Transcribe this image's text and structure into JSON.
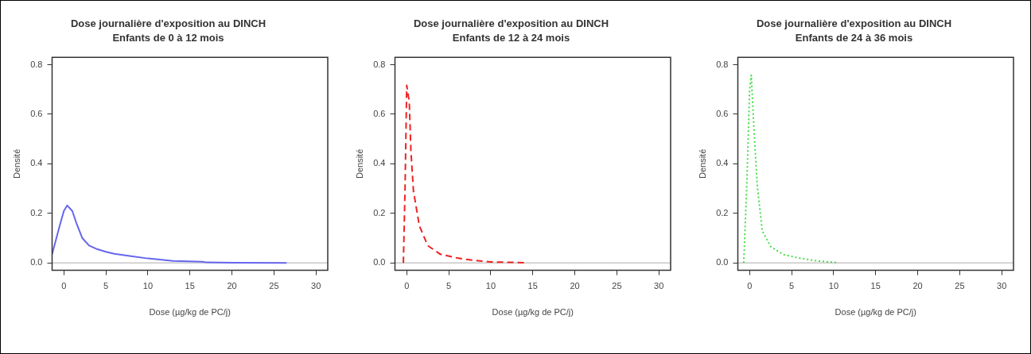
{
  "chart_data": [
    {
      "type": "line",
      "title": "Dose journalière d'exposition au DINCH",
      "subtitle": "Enfants de 0 à 12 mois",
      "xlabel": "Dose (µg/kg de PC/j)",
      "ylabel": "Densité",
      "line_style": "solid",
      "marker": "none",
      "series": [
        {
          "color": "#6666ee",
          "x": [
            -1.4,
            -0.5,
            0,
            0.4,
            1,
            1.5,
            2.2,
            3,
            4,
            5,
            6,
            8,
            10,
            13,
            16.5,
            17,
            20,
            26.5
          ],
          "values": [
            0.035,
            0.15,
            0.21,
            0.232,
            0.21,
            0.16,
            0.1,
            0.07,
            0.055,
            0.045,
            0.037,
            0.027,
            0.018,
            0.008,
            0.005,
            0.002,
            0.001,
            0
          ]
        }
      ],
      "ref_lines": [
        {
          "axis": "y",
          "value": 0,
          "color": "#c8c8c8"
        }
      ],
      "xlim": [
        -1.4,
        31.4
      ],
      "ylim": [
        -0.03,
        0.83
      ],
      "xticks": [
        0,
        5,
        10,
        15,
        20,
        25,
        30
      ],
      "yticks": [
        {
          "value": 0,
          "label": "0.0"
        },
        {
          "value": 0.2,
          "label": "0.2"
        },
        {
          "value": 0.4,
          "label": "0.4"
        },
        {
          "value": 0.6,
          "label": "0.6"
        },
        {
          "value": 0.8,
          "label": "0.8"
        }
      ]
    },
    {
      "type": "line",
      "title": "Dose journalière d'exposition au DINCH",
      "subtitle": "Enfants de 12 à 24 mois",
      "xlabel": "Dose (µg/kg de PC/j)",
      "ylabel": "Densité",
      "line_style": "dashed",
      "marker": "none",
      "series": [
        {
          "color": "#ee2222",
          "x": [
            -0.4,
            -0.2,
            0,
            0.3,
            0.5,
            0.8,
            1.5,
            2.5,
            4,
            6,
            8,
            10,
            14
          ],
          "values": [
            0,
            0.3,
            0.717,
            0.65,
            0.45,
            0.29,
            0.15,
            0.07,
            0.035,
            0.02,
            0.01,
            0.004,
            0.001
          ]
        }
      ],
      "ref_lines": [
        {
          "axis": "y",
          "value": 0,
          "color": "#c8c8c8"
        }
      ],
      "xlim": [
        -1.4,
        31.4
      ],
      "ylim": [
        -0.03,
        0.83
      ],
      "xticks": [
        0,
        5,
        10,
        15,
        20,
        25,
        30
      ],
      "yticks": [
        {
          "value": 0,
          "label": "0.0"
        },
        {
          "value": 0.2,
          "label": "0.2"
        },
        {
          "value": 0.4,
          "label": "0.4"
        },
        {
          "value": 0.6,
          "label": "0.6"
        },
        {
          "value": 0.8,
          "label": "0.8"
        }
      ]
    },
    {
      "type": "line",
      "title": "Dose journalière d'exposition au DINCH",
      "subtitle": "Enfants de 24 à 36 mois",
      "xlabel": "Dose (µg/kg de PC/j)",
      "ylabel": "Densité",
      "line_style": "dotted",
      "marker": "none",
      "series": [
        {
          "color": "#44dd44",
          "x": [
            -0.7,
            -0.3,
            0,
            0.2,
            0.5,
            0.9,
            1.5,
            2.5,
            4,
            6,
            8,
            10.5
          ],
          "values": [
            0,
            0.35,
            0.7,
            0.758,
            0.55,
            0.316,
            0.13,
            0.066,
            0.034,
            0.019,
            0.008,
            0.001
          ]
        }
      ],
      "ref_lines": [
        {
          "axis": "y",
          "value": 0,
          "color": "#c8c8c8"
        }
      ],
      "xlim": [
        -1.4,
        31.4
      ],
      "ylim": [
        -0.03,
        0.83
      ],
      "xticks": [
        0,
        5,
        10,
        15,
        20,
        25,
        30
      ],
      "yticks": [
        {
          "value": 0,
          "label": "0.0"
        },
        {
          "value": 0.2,
          "label": "0.2"
        },
        {
          "value": 0.4,
          "label": "0.4"
        },
        {
          "value": 0.6,
          "label": "0.6"
        },
        {
          "value": 0.8,
          "label": "0.8"
        }
      ]
    }
  ]
}
